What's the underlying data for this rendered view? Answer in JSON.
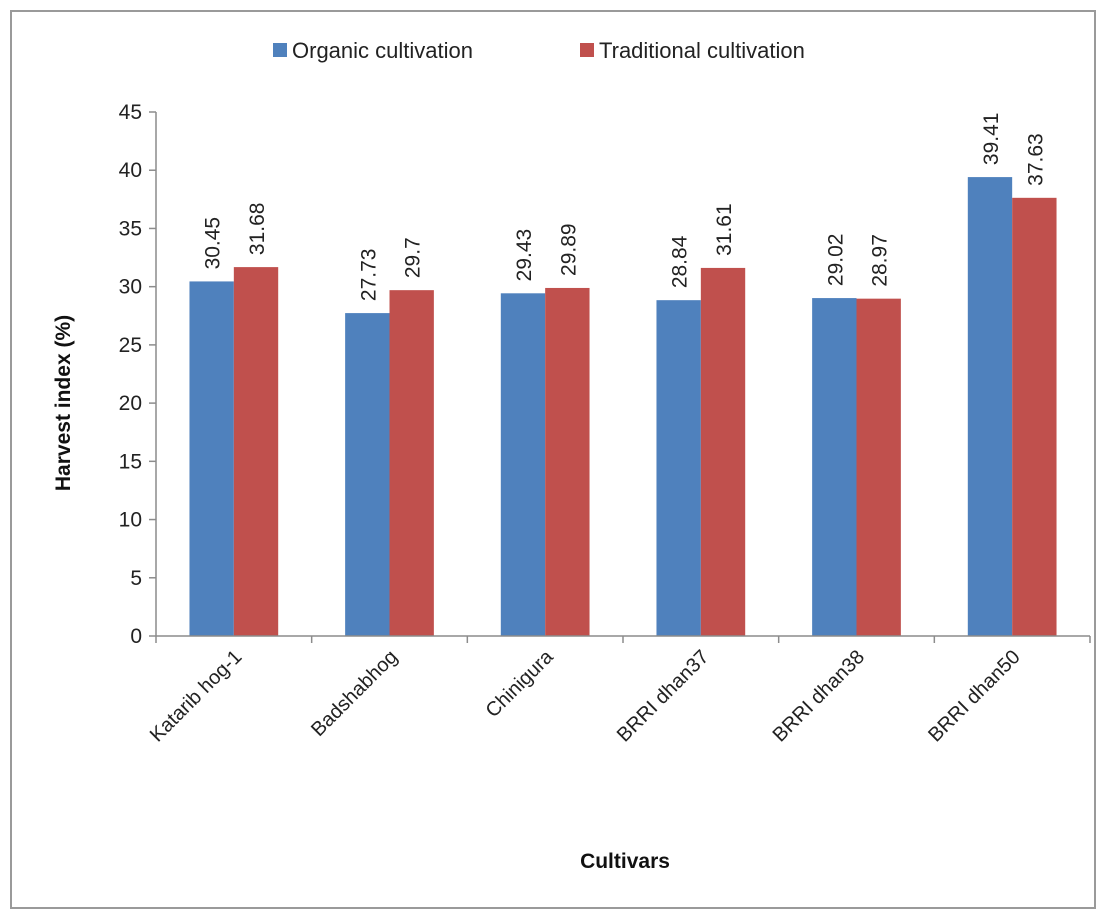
{
  "chart_data": {
    "type": "bar",
    "title": "",
    "xlabel": "Cultivars",
    "ylabel": "Harvest index (%)",
    "ylim": [
      0,
      45
    ],
    "yticks": [
      0,
      5,
      10,
      15,
      20,
      25,
      30,
      35,
      40,
      45
    ],
    "grid": false,
    "legend_position": "top",
    "categories": [
      "Katarib hog-1",
      "Badshabhog",
      "Chinigura",
      "BRRI dhan37",
      "BRRI dhan38",
      "BRRI dhan50"
    ],
    "series": [
      {
        "name": "Organic cultivation",
        "color": "#4f81bd",
        "values": [
          30.45,
          27.73,
          29.43,
          28.84,
          29.02,
          39.41
        ],
        "labels": [
          "30.45",
          "27.73",
          "29.43",
          "28.84",
          "29.02",
          "39.41"
        ]
      },
      {
        "name": "Traditional cultivation",
        "color": "#c0504d",
        "values": [
          31.68,
          29.7,
          29.89,
          31.61,
          28.97,
          37.63
        ],
        "labels": [
          "31.68",
          "29.7",
          "29.89",
          "31.61",
          "28.97",
          "37.63"
        ]
      }
    ]
  }
}
